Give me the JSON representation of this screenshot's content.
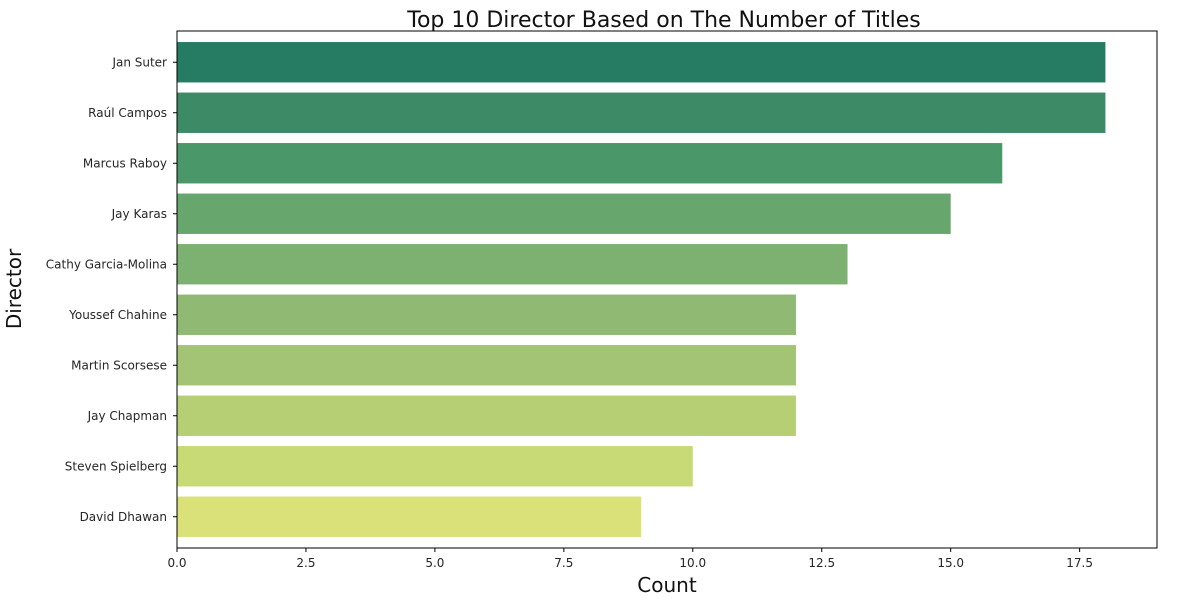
{
  "chart_data": {
    "type": "bar",
    "orientation": "horizontal",
    "title": "Top 10 Director Based on The Number of Titles",
    "xlabel": "Count",
    "ylabel": "Director",
    "xlim": [
      0,
      19
    ],
    "xticks": [
      0,
      2.5,
      5,
      7.5,
      10,
      12.5,
      15,
      17.5
    ],
    "xtick_labels": [
      "0.0",
      "2.5",
      "5.0",
      "7.5",
      "10.0",
      "12.5",
      "15.0",
      "17.5"
    ],
    "grid": false,
    "categories": [
      "Jan Suter",
      "Raúl Campos",
      "Marcus Raboy",
      "Jay Karas",
      "Cathy Garcia-Molina",
      "Youssef Chahine",
      "Martin Scorsese",
      "Jay Chapman",
      "Steven Spielberg",
      "David Dhawan"
    ],
    "values": [
      18,
      18,
      16,
      15,
      13,
      12,
      12,
      12,
      10,
      9
    ],
    "colors": [
      "#267b63",
      "#3d8b66",
      "#4a9869",
      "#67a66d",
      "#7db172",
      "#90ba74",
      "#a2c474",
      "#b6cf75",
      "#c7da76",
      "#d9e178"
    ]
  }
}
